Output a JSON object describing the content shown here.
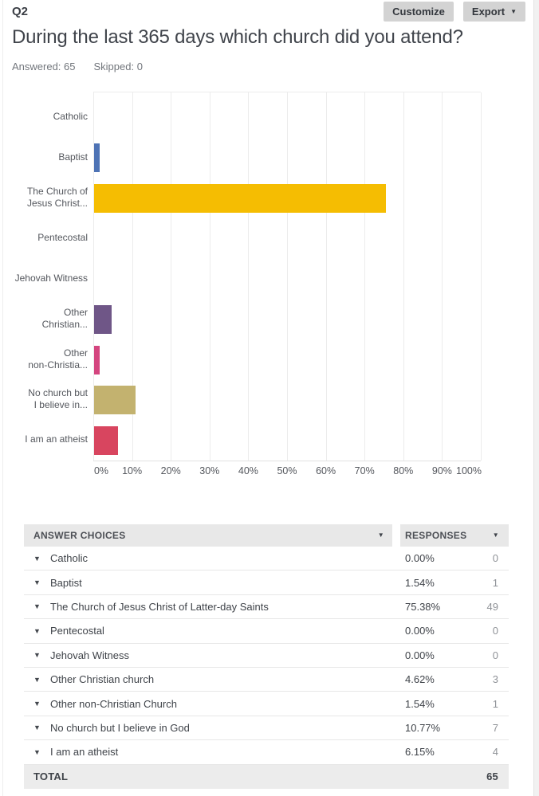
{
  "header": {
    "question_number": "Q2",
    "customize_label": "Customize",
    "export_label": "Export",
    "title": "During the last 365 days which church did you attend?",
    "answered_label": "Answered: 65",
    "skipped_label": "Skipped: 0"
  },
  "colors": {
    "button_bg": "#d3d3d3",
    "table_header_bg": "#e8e8e8",
    "total_row_bg": "#ececec"
  },
  "chart_data": {
    "type": "bar",
    "orientation": "horizontal",
    "title": "",
    "xlabel": "",
    "ylabel": "",
    "xlim": [
      0,
      100
    ],
    "grid": true,
    "categories": [
      "Catholic",
      "Baptist",
      "The Church of Jesus Christ of Latter-day Saints",
      "Pentecostal",
      "Jehovah Witness",
      "Other Christian church",
      "Other non-Christian Church",
      "No church but I believe in God",
      "I am an atheist"
    ],
    "category_display_lines": [
      [
        "Catholic"
      ],
      [
        "Baptist"
      ],
      [
        "The Church of",
        "Jesus Christ..."
      ],
      [
        "Pentecostal"
      ],
      [
        "Jehovah Witness"
      ],
      [
        "Other",
        "Christian..."
      ],
      [
        "Other",
        "non-Christia..."
      ],
      [
        "No church but",
        "I believe in..."
      ],
      [
        "I am an atheist"
      ]
    ],
    "values": [
      0,
      1.54,
      75.38,
      0,
      0,
      4.62,
      1.54,
      10.77,
      6.15
    ],
    "bar_colors": [
      null,
      "#4E73B5",
      "#F5BD02",
      null,
      null,
      "#6F5687",
      "#D4457F",
      "#C3B26F",
      "#D8455F"
    ],
    "xlabel_ticks": [
      "0%",
      "10%",
      "20%",
      "30%",
      "40%",
      "50%",
      "60%",
      "70%",
      "80%",
      "90%",
      "100%"
    ]
  },
  "table": {
    "columns": [
      "ANSWER CHOICES",
      "RESPONSES"
    ],
    "rows": [
      {
        "label": "Catholic",
        "percent": "0.00%",
        "count": "0"
      },
      {
        "label": "Baptist",
        "percent": "1.54%",
        "count": "1"
      },
      {
        "label": "The Church of Jesus Christ of Latter-day Saints",
        "percent": "75.38%",
        "count": "49"
      },
      {
        "label": "Pentecostal",
        "percent": "0.00%",
        "count": "0"
      },
      {
        "label": "Jehovah Witness",
        "percent": "0.00%",
        "count": "0"
      },
      {
        "label": "Other Christian church",
        "percent": "4.62%",
        "count": "3"
      },
      {
        "label": "Other non-Christian Church",
        "percent": "1.54%",
        "count": "1"
      },
      {
        "label": "No church but I believe in God",
        "percent": "10.77%",
        "count": "7"
      },
      {
        "label": "I am an atheist",
        "percent": "6.15%",
        "count": "4"
      }
    ],
    "total_label": "TOTAL",
    "total_count": "65"
  }
}
